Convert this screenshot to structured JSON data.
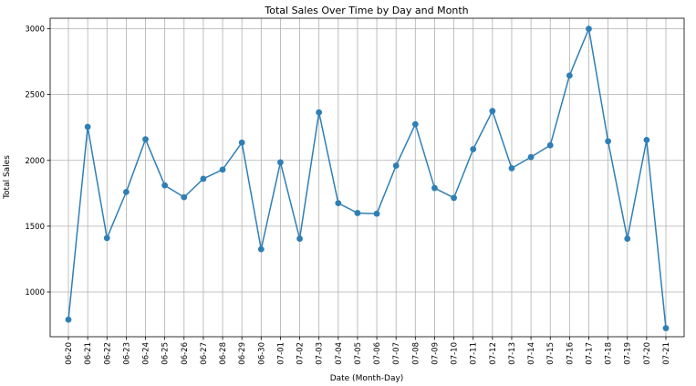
{
  "chart_data": {
    "type": "line",
    "title": "Total Sales Over Time by Day and Month",
    "xlabel": "Date (Month-Day)",
    "ylabel": "Total Sales",
    "x": [
      "06-20",
      "06-21",
      "06-22",
      "06-23",
      "06-24",
      "06-25",
      "06-26",
      "06-27",
      "06-28",
      "06-29",
      "06-30",
      "07-01",
      "07-02",
      "07-03",
      "07-04",
      "07-05",
      "07-06",
      "07-07",
      "07-08",
      "07-09",
      "07-10",
      "07-11",
      "07-12",
      "07-13",
      "07-14",
      "07-15",
      "07-16",
      "07-17",
      "07-18",
      "07-19",
      "07-20",
      "07-21"
    ],
    "series": [
      {
        "values": [
          790,
          2255,
          1410,
          1760,
          2160,
          1810,
          1720,
          1860,
          1930,
          2135,
          1325,
          1985,
          1405,
          2365,
          1675,
          1600,
          1595,
          1960,
          2275,
          1790,
          1715,
          2085,
          2375,
          1940,
          2025,
          2115,
          2645,
          3000,
          2145,
          1405,
          2155,
          725
        ]
      }
    ],
    "yticks": [
      1000,
      1500,
      2000,
      2500,
      3000
    ],
    "ylim": [
      660,
      3080
    ],
    "grid": true,
    "legend": false,
    "line_color": "#2f7fb6",
    "marker_color": "#2f7fb6",
    "tick_label_rotation": "vertical"
  }
}
